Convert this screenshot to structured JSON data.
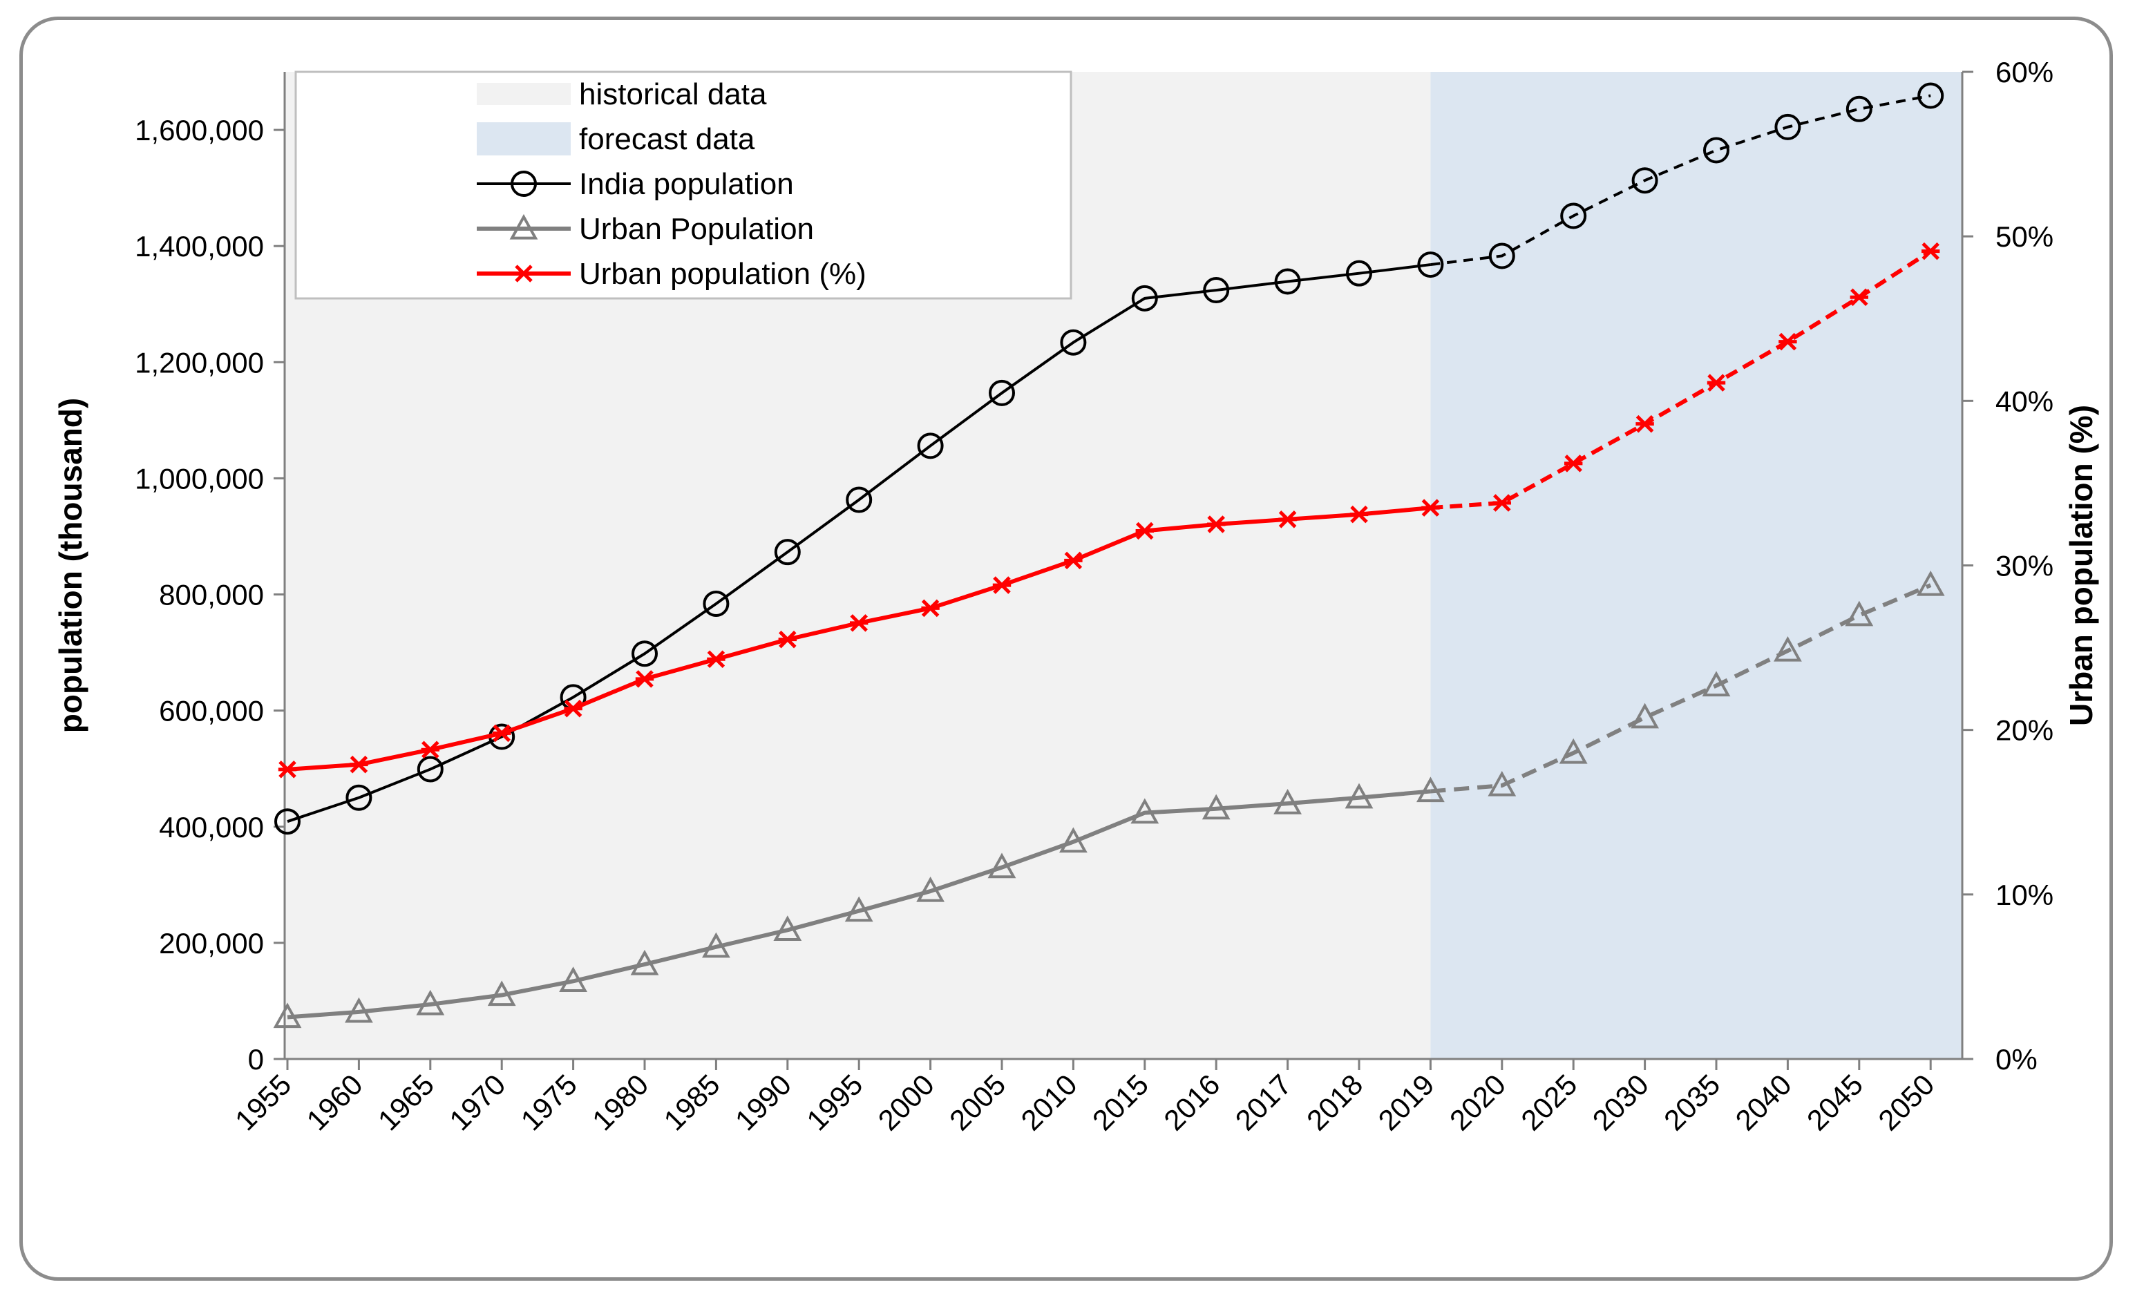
{
  "chart_data": {
    "type": "line",
    "categories": [
      "1955",
      "1960",
      "1965",
      "1970",
      "1975",
      "1980",
      "1985",
      "1990",
      "1995",
      "2000",
      "2005",
      "2010",
      "2015",
      "2016",
      "2017",
      "2018",
      "2019",
      "2020",
      "2025",
      "2030",
      "2035",
      "2040",
      "2045",
      "2050"
    ],
    "forecast_start": "2019",
    "series": [
      {
        "name": "India population",
        "axis": "left",
        "color": "#000000",
        "marker": "circle",
        "values": [
          409000,
          450000,
          499000,
          555000,
          623000,
          698000,
          784000,
          873000,
          963000,
          1056000,
          1147000,
          1234000,
          1310000,
          1324000,
          1339000,
          1353000,
          1368000,
          1383000,
          1452000,
          1513000,
          1565000,
          1605000,
          1636000,
          1659000
        ]
      },
      {
        "name": "Urban Population",
        "axis": "left",
        "color": "#808080",
        "marker": "triangle",
        "values": [
          72000,
          81000,
          94000,
          110000,
          134000,
          163000,
          193000,
          222000,
          255000,
          289000,
          330000,
          374000,
          424000,
          431000,
          440000,
          450000,
          461000,
          471000,
          527000,
          588000,
          643000,
          703000,
          764000,
          816000
        ]
      },
      {
        "name": "Urban population (%)",
        "axis": "right",
        "color": "#ff0000",
        "marker": "x",
        "values": [
          17.6,
          17.9,
          18.8,
          19.8,
          21.3,
          23.1,
          24.3,
          25.5,
          26.5,
          27.4,
          28.8,
          30.3,
          32.1,
          32.5,
          32.8,
          33.1,
          33.5,
          33.8,
          36.2,
          38.6,
          41.1,
          43.6,
          46.3,
          49.1
        ]
      }
    ],
    "y_left": {
      "label": "population (thousand)",
      "range": [
        0,
        1700000
      ],
      "ticks": [
        "0",
        "200,000",
        "400,000",
        "600,000",
        "800,000",
        "1,000,000",
        "1,200,000",
        "1,400,000",
        "1,600,000"
      ]
    },
    "y_right": {
      "label": "Urban population (%)",
      "range": [
        0,
        60
      ],
      "ticks": [
        "0%",
        "10%",
        "20%",
        "30%",
        "40%",
        "50%",
        "60%"
      ]
    },
    "legend": {
      "position": "top-left",
      "items": [
        {
          "label": "historical data",
          "kind": "area",
          "color": "#f2f2f2"
        },
        {
          "label": "forecast data",
          "kind": "area",
          "color": "#dce6f1"
        },
        {
          "label": "India population",
          "kind": "line",
          "color": "#000000",
          "marker": "circle"
        },
        {
          "label": "Urban Population",
          "kind": "line",
          "color": "#808080",
          "marker": "triangle"
        },
        {
          "label": "Urban population (%)",
          "kind": "line",
          "color": "#ff0000",
          "marker": "x"
        }
      ]
    },
    "colors": {
      "historical_bg": "#f2f2f2",
      "forecast_bg": "#dce6f1",
      "axis": "#808080"
    }
  }
}
